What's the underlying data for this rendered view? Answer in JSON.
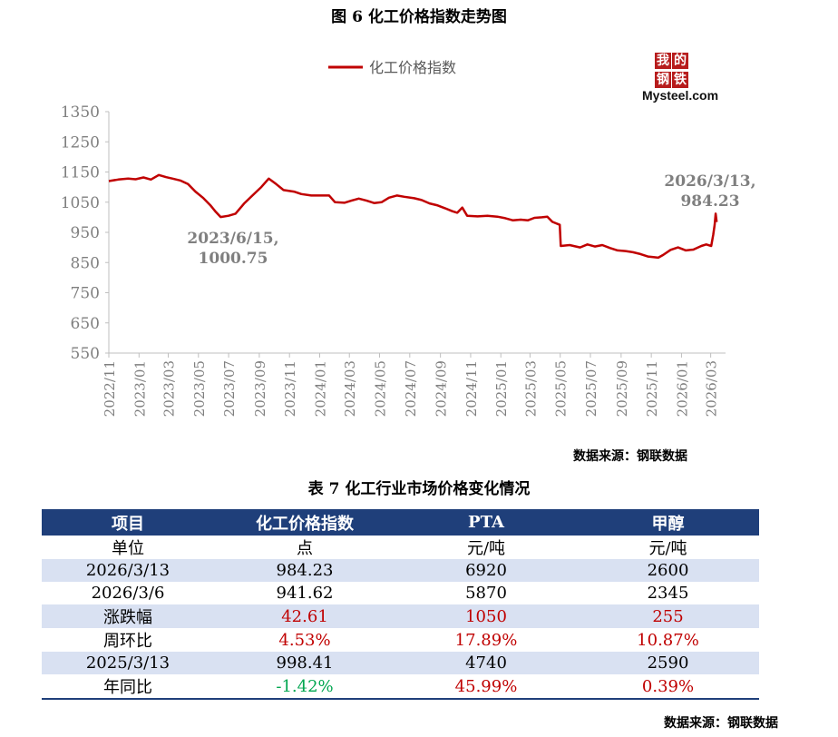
{
  "figure_title": "图 6 化工价格指数走势图",
  "logo": {
    "chars": [
      "我",
      "的",
      "钢",
      "铁"
    ],
    "word": "Mysteel.com"
  },
  "chart_data": {
    "type": "line",
    "title": "图 6 化工价格指数走势图",
    "legend": [
      "化工价格指数"
    ],
    "legend_position": "top-center",
    "series_color": "#c00000",
    "ylim": [
      550,
      1350
    ],
    "yticks": [
      550,
      650,
      750,
      850,
      950,
      1050,
      1150,
      1250,
      1350
    ],
    "xticks": [
      "2022/11",
      "2023/01",
      "2023/03",
      "2023/05",
      "2023/07",
      "2023/09",
      "2023/11",
      "2024/01",
      "2024/03",
      "2024/05",
      "2024/07",
      "2024/09",
      "2024/11",
      "2025/01",
      "2025/03",
      "2025/05",
      "2025/07",
      "2025/09",
      "2025/11",
      "2026/01",
      "2026/03"
    ],
    "grid": false,
    "series": [
      {
        "name": "化工价格指数",
        "points": [
          [
            "2022-11-01",
            1120
          ],
          [
            "2022-11-20",
            1125
          ],
          [
            "2022-12-10",
            1128
          ],
          [
            "2022-12-25",
            1126
          ],
          [
            "2023-01-10",
            1132
          ],
          [
            "2023-01-25",
            1125
          ],
          [
            "2023-02-10",
            1140
          ],
          [
            "2023-02-25",
            1133
          ],
          [
            "2023-03-10",
            1128
          ],
          [
            "2023-03-25",
            1122
          ],
          [
            "2023-04-10",
            1110
          ],
          [
            "2023-04-25",
            1085
          ],
          [
            "2023-05-10",
            1065
          ],
          [
            "2023-05-25",
            1040
          ],
          [
            "2023-06-05",
            1018
          ],
          [
            "2023-06-15",
            1000.75
          ],
          [
            "2023-07-01",
            1005
          ],
          [
            "2023-07-15",
            1012
          ],
          [
            "2023-08-01",
            1045
          ],
          [
            "2023-08-20",
            1075
          ],
          [
            "2023-09-05",
            1100
          ],
          [
            "2023-09-20",
            1128
          ],
          [
            "2023-10-05",
            1110
          ],
          [
            "2023-10-20",
            1090
          ],
          [
            "2023-11-10",
            1085
          ],
          [
            "2023-11-25",
            1077
          ],
          [
            "2023-12-15",
            1072
          ],
          [
            "2024-01-05",
            1072
          ],
          [
            "2024-01-20",
            1072
          ],
          [
            "2024-02-01",
            1050
          ],
          [
            "2024-02-20",
            1048
          ],
          [
            "2024-03-05",
            1055
          ],
          [
            "2024-03-20",
            1062
          ],
          [
            "2024-04-05",
            1055
          ],
          [
            "2024-04-20",
            1047
          ],
          [
            "2024-05-05",
            1050
          ],
          [
            "2024-05-20",
            1065
          ],
          [
            "2024-06-05",
            1072
          ],
          [
            "2024-06-20",
            1068
          ],
          [
            "2024-07-10",
            1063
          ],
          [
            "2024-07-25",
            1057
          ],
          [
            "2024-08-10",
            1046
          ],
          [
            "2024-08-25",
            1040
          ],
          [
            "2024-09-10",
            1030
          ],
          [
            "2024-09-25",
            1020
          ],
          [
            "2024-10-05",
            1015
          ],
          [
            "2024-10-15",
            1032
          ],
          [
            "2024-10-25",
            1005
          ],
          [
            "2024-11-15",
            1003
          ],
          [
            "2024-12-05",
            1005
          ],
          [
            "2024-12-25",
            1002
          ],
          [
            "2025-01-10",
            997
          ],
          [
            "2025-01-25",
            990
          ],
          [
            "2025-02-10",
            992
          ],
          [
            "2025-02-25",
            990
          ],
          [
            "2025-03-10",
            998
          ],
          [
            "2025-03-25",
            1000
          ],
          [
            "2025-04-05",
            1002
          ],
          [
            "2025-04-15",
            985
          ],
          [
            "2025-04-30",
            975
          ],
          [
            "2025-05-02",
            905
          ],
          [
            "2025-05-20",
            908
          ],
          [
            "2025-06-10",
            900
          ],
          [
            "2025-06-25",
            910
          ],
          [
            "2025-07-10",
            903
          ],
          [
            "2025-07-25",
            908
          ],
          [
            "2025-08-10",
            898
          ],
          [
            "2025-08-25",
            890
          ],
          [
            "2025-09-10",
            888
          ],
          [
            "2025-09-25",
            884
          ],
          [
            "2025-10-10",
            878
          ],
          [
            "2025-10-25",
            870
          ],
          [
            "2025-11-05",
            868
          ],
          [
            "2025-11-15",
            866
          ],
          [
            "2025-11-25",
            875
          ],
          [
            "2025-12-10",
            892
          ],
          [
            "2025-12-25",
            900
          ],
          [
            "2026-01-10",
            890
          ],
          [
            "2026-01-25",
            893
          ],
          [
            "2026-02-10",
            905
          ],
          [
            "2026-02-20",
            910
          ],
          [
            "2026-03-02",
            905
          ],
          [
            "2026-03-06",
            941.62
          ],
          [
            "2026-03-09",
            975
          ],
          [
            "2026-03-11",
            1012
          ],
          [
            "2026-03-13",
            984.23
          ]
        ]
      }
    ],
    "annotations": [
      {
        "label": "2023/6/15,\n1000.75",
        "x": "2023-06-15",
        "y": 1000.75
      },
      {
        "label": "2026/3/13,\n984.23",
        "x": "2026-03-13",
        "y": 984.23
      }
    ]
  },
  "figure_source": "数据来源：钢联数据",
  "table_title": "表 7 化工行业市场价格变化情况",
  "table": {
    "headers": [
      "项目",
      "化工价格指数",
      "PTA",
      "甲醇"
    ],
    "rows": [
      [
        "单位",
        "点",
        "元/吨",
        "元/吨"
      ],
      [
        "2026/3/13",
        "984.23",
        "6920",
        "2600"
      ],
      [
        "2026/3/6",
        "941.62",
        "5870",
        "2345"
      ],
      [
        "涨跌幅",
        "42.61",
        "1050",
        "255"
      ],
      [
        "周环比",
        "4.53%",
        "17.89%",
        "10.87%"
      ],
      [
        "2025/3/13",
        "998.41",
        "4740",
        "2590"
      ],
      [
        "年同比",
        "-1.42%",
        "45.99%",
        "0.39%"
      ]
    ]
  },
  "table_source": "数据来源：钢联数据"
}
